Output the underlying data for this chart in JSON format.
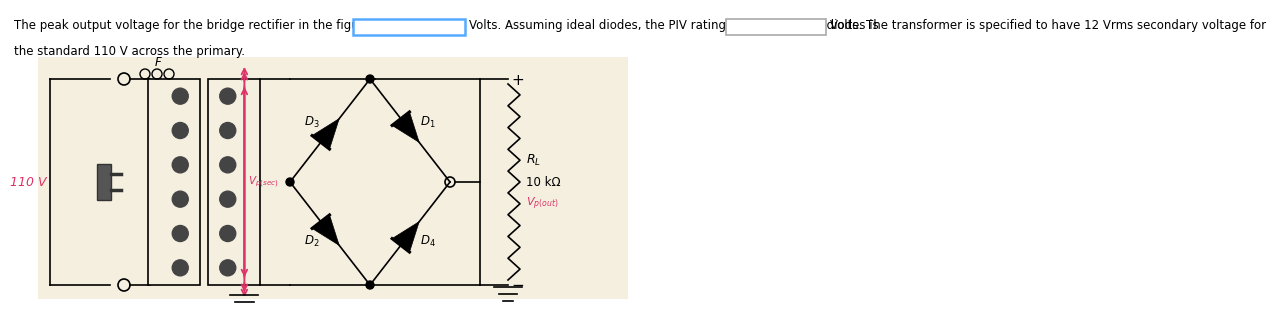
{
  "text_line1": "The peak output voltage for the bridge rectifier in the figure is",
  "text_after_box1": "Volts. Assuming ideal diodes, the PIV rating required for the diodes is",
  "text_after_box2": "Volts. The transformer is specified to have 12 Vrms secondary voltage for",
  "text_line2": "the standard 110 V across the primary.",
  "box1_edge_color": "#55aaff",
  "box2_edge_color": "#aaaaaa",
  "box_fill_color": "white",
  "background_color": "white",
  "circuit_bg": "#f5efe0",
  "text_color": "black",
  "font_size": 8.5,
  "source_color": "#dd3366",
  "vsec_color": "#dd3366",
  "vout_color": "#dd3366",
  "wire_color": "black",
  "coil_color": "#444444",
  "diode_color": "black",
  "ground_color": "black"
}
